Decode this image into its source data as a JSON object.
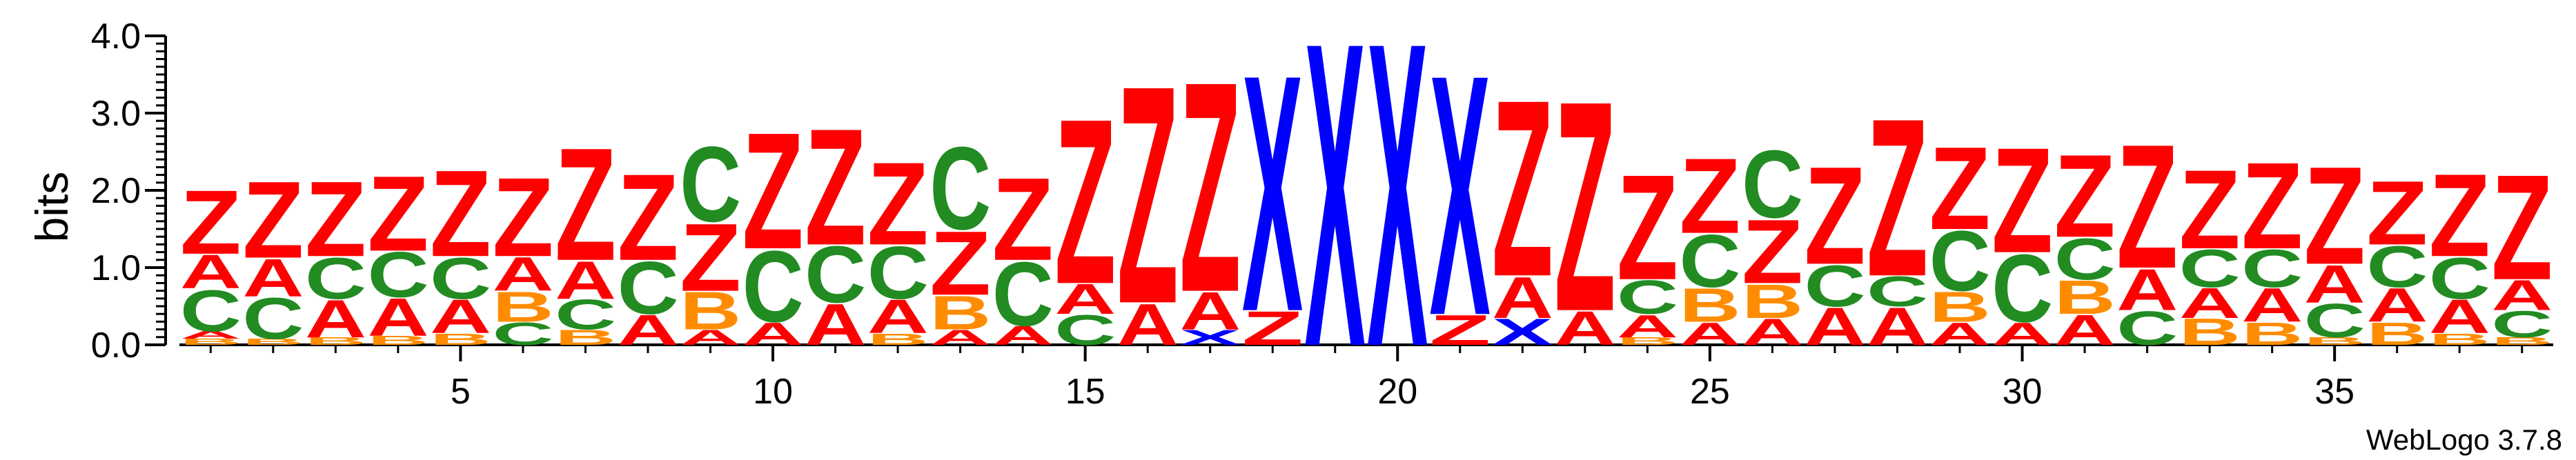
{
  "chart_data": {
    "type": "sequence-logo",
    "ylabel": "bits",
    "ylim": [
      0,
      4.0
    ],
    "y_ticks": [
      "0.0",
      "1.0",
      "2.0",
      "3.0",
      "4.0"
    ],
    "x_ticks": [
      "5",
      "10",
      "15",
      "20",
      "25",
      "30",
      "35"
    ],
    "x_tick_values": [
      5,
      10,
      15,
      20,
      25,
      30,
      35
    ],
    "positions": 38,
    "credit": "WebLogo 3.7.8",
    "colors": {
      "Z": "#ff0000",
      "A": "#ff0000",
      "C": "#228b22",
      "B": "#ff8c00",
      "X": "#0000ff"
    },
    "stacks": [
      [
        [
          "B",
          0.08
        ],
        [
          "A",
          0.1
        ],
        [
          "C",
          0.55
        ],
        [
          "A",
          0.45
        ],
        [
          "Z",
          0.85
        ]
      ],
      [
        [
          "B",
          0.08
        ],
        [
          "C",
          0.55
        ],
        [
          "A",
          0.5
        ],
        [
          "Z",
          1.02
        ]
      ],
      [
        [
          "B",
          0.1
        ],
        [
          "A",
          0.5
        ],
        [
          "C",
          0.55
        ],
        [
          "Z",
          1.0
        ]
      ],
      [
        [
          "B",
          0.12
        ],
        [
          "A",
          0.5
        ],
        [
          "C",
          0.6
        ],
        [
          "Z",
          1.0
        ]
      ],
      [
        [
          "B",
          0.15
        ],
        [
          "A",
          0.45
        ],
        [
          "C",
          0.55
        ],
        [
          "Z",
          1.15
        ]
      ],
      [
        [
          "C",
          0.3
        ],
        [
          "B",
          0.4
        ],
        [
          "A",
          0.45
        ],
        [
          "Z",
          1.05
        ]
      ],
      [
        [
          "B",
          0.2
        ],
        [
          "C",
          0.4
        ],
        [
          "A",
          0.5
        ],
        [
          "Z",
          1.5
        ]
      ],
      [
        [
          "A",
          0.4
        ],
        [
          "C",
          0.7
        ],
        [
          "Z",
          1.15
        ]
      ],
      [
        [
          "A",
          0.2
        ],
        [
          "B",
          0.5
        ],
        [
          "Z",
          0.9
        ],
        [
          "C",
          1.0
        ]
      ],
      [
        [
          "A",
          0.3
        ],
        [
          "C",
          0.95
        ],
        [
          "Z",
          1.55
        ]
      ],
      [
        [
          "A",
          0.55
        ],
        [
          "C",
          0.75
        ],
        [
          "Z",
          1.55
        ]
      ],
      [
        [
          "B",
          0.15
        ],
        [
          "A",
          0.45
        ],
        [
          "C",
          0.7
        ],
        [
          "Z",
          1.1
        ]
      ],
      [
        [
          "A",
          0.2
        ],
        [
          "B",
          0.45
        ],
        [
          "Z",
          0.85
        ],
        [
          "C",
          1.1
        ]
      ],
      [
        [
          "A",
          0.25
        ],
        [
          "C",
          0.85
        ],
        [
          "Z",
          1.1
        ]
      ],
      [
        [
          "C",
          0.4
        ],
        [
          "A",
          0.4
        ],
        [
          "Z",
          2.2
        ]
      ],
      [
        [
          "A",
          0.55
        ],
        [
          "Z",
          2.9
        ]
      ],
      [
        [
          "X",
          0.2
        ],
        [
          "A",
          0.5
        ],
        [
          "Z",
          2.8
        ]
      ],
      [
        [
          "Z",
          0.45
        ],
        [
          "X",
          3.15
        ]
      ],
      [
        [
          "X",
          4.05
        ]
      ],
      [
        [
          "X",
          4.05
        ]
      ],
      [
        [
          "Z",
          0.4
        ],
        [
          "X",
          3.2
        ]
      ],
      [
        [
          "X",
          0.35
        ],
        [
          "A",
          0.55
        ],
        [
          "Z",
          2.35
        ]
      ],
      [
        [
          "A",
          0.45
        ],
        [
          "Z",
          2.8
        ]
      ],
      [
        [
          "B",
          0.1
        ],
        [
          "A",
          0.3
        ],
        [
          "C",
          0.45
        ],
        [
          "Z",
          1.4
        ]
      ],
      [
        [
          "A",
          0.3
        ],
        [
          "B",
          0.45
        ],
        [
          "C",
          0.7
        ],
        [
          "Z",
          1.0
        ]
      ],
      [
        [
          "A",
          0.35
        ],
        [
          "B",
          0.45
        ],
        [
          "Z",
          0.85
        ],
        [
          "C",
          0.9
        ]
      ],
      [
        [
          "A",
          0.5
        ],
        [
          "C",
          0.55
        ],
        [
          "Z",
          1.3
        ]
      ],
      [
        [
          "A",
          0.5
        ],
        [
          "C",
          0.4
        ],
        [
          "Z",
          2.1
        ]
      ],
      [
        [
          "A",
          0.3
        ],
        [
          "B",
          0.4
        ],
        [
          "C",
          0.8
        ],
        [
          "Z",
          1.1
        ]
      ],
      [
        [
          "A",
          0.3
        ],
        [
          "C",
          0.9
        ],
        [
          "Z",
          1.4
        ]
      ],
      [
        [
          "A",
          0.4
        ],
        [
          "B",
          0.45
        ],
        [
          "C",
          0.55
        ],
        [
          "Z",
          1.1
        ]
      ],
      [
        [
          "C",
          0.45
        ],
        [
          "A",
          0.55
        ],
        [
          "Z",
          1.65
        ]
      ],
      [
        [
          "B",
          0.35
        ],
        [
          "A",
          0.4
        ],
        [
          "C",
          0.5
        ],
        [
          "Z",
          1.05
        ]
      ],
      [
        [
          "B",
          0.3
        ],
        [
          "A",
          0.45
        ],
        [
          "C",
          0.5
        ],
        [
          "Z",
          1.15
        ]
      ],
      [
        [
          "B",
          0.1
        ],
        [
          "C",
          0.45
        ],
        [
          "A",
          0.5
        ],
        [
          "Z",
          1.3
        ]
      ],
      [
        [
          "B",
          0.3
        ],
        [
          "A",
          0.45
        ],
        [
          "C",
          0.55
        ],
        [
          "Z",
          0.85
        ]
      ],
      [
        [
          "B",
          0.15
        ],
        [
          "A",
          0.45
        ],
        [
          "C",
          0.55
        ],
        [
          "Z",
          1.1
        ]
      ],
      [
        [
          "B",
          0.1
        ],
        [
          "C",
          0.35
        ],
        [
          "A",
          0.4
        ],
        [
          "Z",
          1.4
        ]
      ]
    ]
  }
}
